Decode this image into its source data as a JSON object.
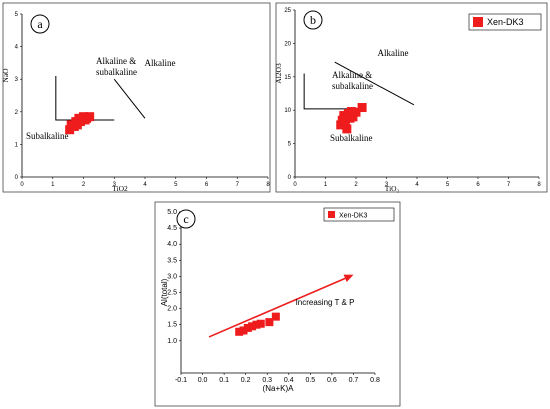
{
  "chart_data": [
    {
      "panel": "a",
      "type": "scatter",
      "xlabel": "TiO2",
      "ylabel": "NaO",
      "xlim": [
        0,
        8
      ],
      "ylim": [
        0,
        5
      ],
      "xticks": [
        "0",
        "1",
        "2",
        "3",
        "4",
        "5",
        "6",
        "7",
        "8"
      ],
      "yticks": [
        "0",
        "1",
        "2",
        "3",
        "4",
        "5"
      ],
      "annotations": [
        "Alkaline &",
        "subalkaline",
        "Alkaline",
        "Subalkaline"
      ],
      "series": [
        {
          "name": "Xen-DK3",
          "color": "#ee1c1c",
          "x": [
            1.55,
            1.6,
            1.7,
            1.75,
            1.8,
            1.85,
            1.9,
            2.0,
            2.05,
            2.1,
            2.2
          ],
          "y": [
            1.45,
            1.6,
            1.55,
            1.7,
            1.6,
            1.8,
            1.7,
            1.85,
            1.75,
            1.8,
            1.85
          ]
        }
      ],
      "lines": [
        {
          "x": [
            1.1,
            1.1,
            3.0
          ],
          "y": [
            3.1,
            1.75,
            1.75
          ]
        },
        {
          "x": [
            3.0,
            4.0
          ],
          "y": [
            3.0,
            1.8
          ]
        }
      ]
    },
    {
      "panel": "b",
      "type": "scatter",
      "xlabel": "TiO₂",
      "ylabel": "Al2O3",
      "xlim": [
        0,
        8
      ],
      "ylim": [
        0,
        25
      ],
      "xticks": [
        "0",
        "1",
        "2",
        "3",
        "4",
        "5",
        "6",
        "7",
        "8"
      ],
      "yticks": [
        "0",
        "5",
        "10",
        "15",
        "20",
        "25"
      ],
      "annotations": [
        "Alkaline",
        "Alkaline &",
        "subalkaline",
        "Subalkaline"
      ],
      "legend": "Xen-DK3",
      "series": [
        {
          "name": "Xen-DK3",
          "color": "#ee1c1c",
          "x": [
            1.5,
            1.55,
            1.6,
            1.65,
            1.7,
            1.75,
            1.8,
            1.85,
            1.9,
            2.0,
            2.2
          ],
          "y": [
            7.8,
            8.5,
            9.2,
            8.0,
            7.2,
            9.5,
            8.8,
            9.8,
            9.0,
            9.7,
            10.4
          ]
        }
      ],
      "lines": [
        {
          "x": [
            0.3,
            0.3,
            2.3
          ],
          "y": [
            15.5,
            10.2,
            10.2
          ]
        },
        {
          "x": [
            1.3,
            3.9
          ],
          "y": [
            17.2,
            10.8
          ]
        }
      ]
    },
    {
      "panel": "c",
      "type": "scatter",
      "xlabel": "(Na+K)A",
      "ylabel": "Al(total)",
      "xlim": [
        -0.1,
        0.8
      ],
      "ylim": [
        0,
        5.0
      ],
      "xticks": [
        "-0.1",
        "0.0",
        "0.1",
        "0.2",
        "0.3",
        "0.4",
        "0.5",
        "0.6",
        "0.7",
        "0.8"
      ],
      "yticks": [
        "1.0",
        "1.5",
        "2.0",
        "2.5",
        "3.0",
        "3.5",
        "4.0",
        "4.5",
        "5.0"
      ],
      "annotations": [
        "Increasing T & P"
      ],
      "legend": "Xen-DK3",
      "series": [
        {
          "name": "Xen-DK3",
          "color": "#ee1c1c",
          "x": [
            0.17,
            0.19,
            0.21,
            0.23,
            0.25,
            0.27,
            0.31,
            0.34
          ],
          "y": [
            1.28,
            1.32,
            1.4,
            1.45,
            1.5,
            1.53,
            1.58,
            1.75
          ]
        }
      ],
      "arrow": {
        "x": [
          0.03,
          0.7
        ],
        "y": [
          1.12,
          3.05
        ]
      }
    }
  ]
}
